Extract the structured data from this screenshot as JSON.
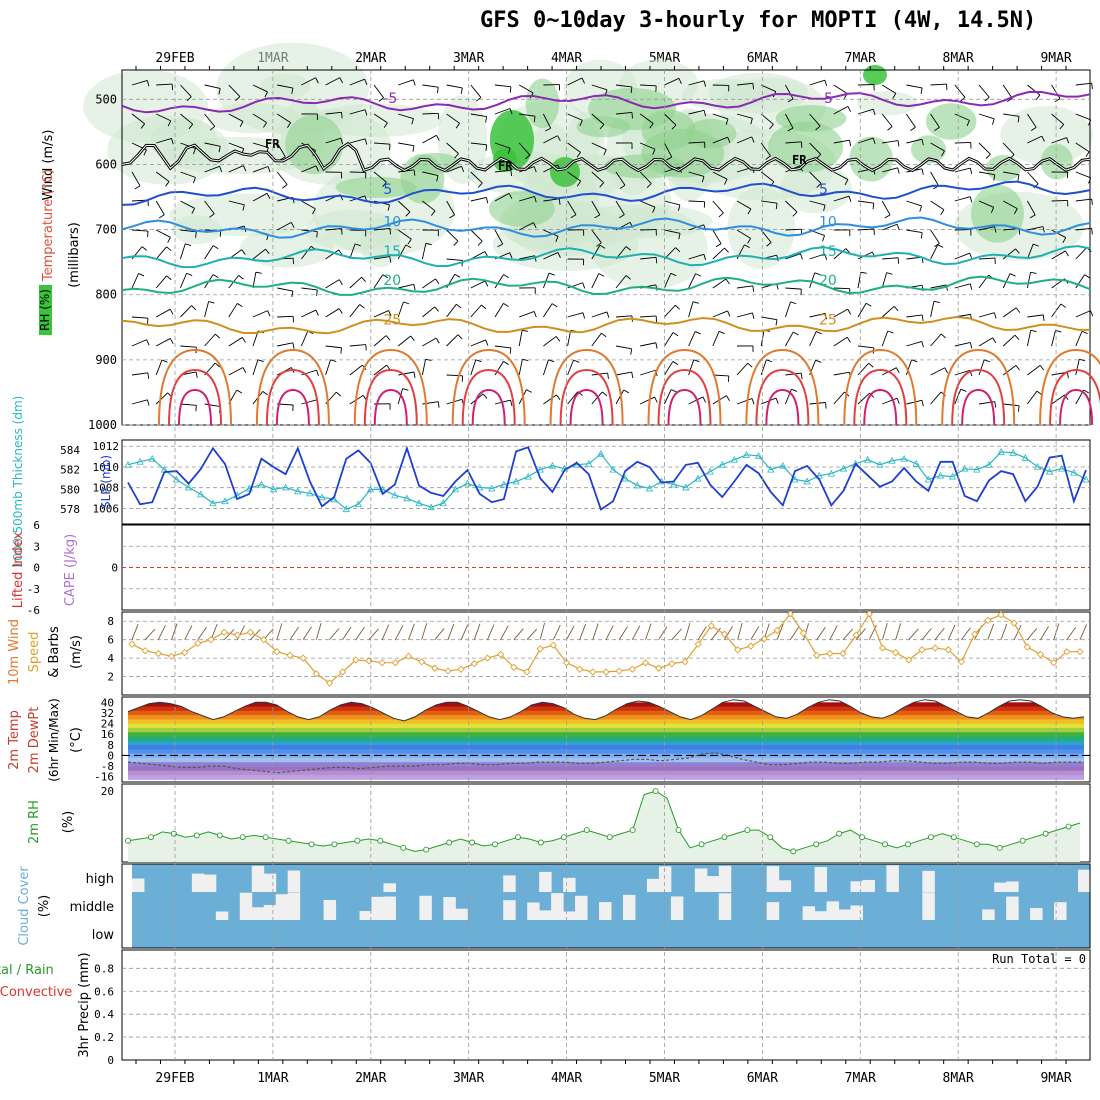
{
  "title": "GFS 0~10day 3-hourly for MOPTI (4W, 14.5N)",
  "run_total_label": "Run Total = 0",
  "dates": [
    "29FEB",
    "1MAR",
    "2MAR",
    "3MAR",
    "4MAR",
    "5MAR",
    "6MAR",
    "7MAR",
    "8MAR",
    "9MAR"
  ],
  "colors": {
    "slp": "#1f3fcf",
    "thickness": "#2ab7c2",
    "wind": "#e0a030",
    "rh2m": "#2a9a2a",
    "cloud": "#6baed6",
    "cloud_gap": "#f0f0f0",
    "lifted_zero": "#e03030",
    "barb": "#000000"
  },
  "chart_data": [
    {
      "type": "heatmap",
      "name": "upper",
      "ylabel_parts": [
        {
          "text": "Wind (m/s)",
          "color": "#000000"
        },
        {
          "text": "Temperature (°C)",
          "color": "#e0503a"
        },
        {
          "text": "(millibars)",
          "color": "#000000"
        },
        {
          "text": "RH (%)",
          "color": "#2a9a2a"
        }
      ],
      "yticks": [
        500,
        600,
        700,
        800,
        900,
        1000
      ],
      "temp_isotherms": [
        {
          "label": "-5",
          "p": 510,
          "color": "#8a2ab2"
        },
        {
          "label": "5",
          "p": 650,
          "color": "#1f4fcf"
        },
        {
          "label": "10",
          "p": 700,
          "color": "#2f8fdf"
        },
        {
          "label": "15",
          "p": 745,
          "color": "#20b0b0"
        },
        {
          "label": "20",
          "p": 790,
          "color": "#20b080"
        },
        {
          "label": "25",
          "p": 850,
          "color": "#d09020"
        }
      ],
      "freezing_label": "FR"
    },
    {
      "type": "line",
      "name": "slp_thickness",
      "ylabel_left": "1000-500mb Thickness (dm)",
      "ylabel_right": "SLP (mb)",
      "yticks_left": [
        578,
        580,
        582,
        584
      ],
      "yticks_right": [
        1006,
        1008,
        1010,
        1012
      ],
      "series": [
        {
          "name": "SLP",
          "values": [
            1008.5,
            1006.4,
            1006.6,
            1009.5,
            1009.6,
            1008.4,
            1009.8,
            1011.8,
            1010.3,
            1006.9,
            1007.4,
            1010.8,
            1010.0,
            1009.3,
            1011.8,
            1008.6,
            1006.2,
            1007.1,
            1010.8,
            1011.6,
            1010.4,
            1007.4,
            1008.3,
            1011.8,
            1008.2,
            1007.5,
            1007.2,
            1008.6,
            1009.7,
            1007.4,
            1006.6,
            1006.9,
            1011.5,
            1011.9,
            1008.9,
            1007.6,
            1009.7,
            1010.4,
            1009.3,
            1005.9,
            1006.7,
            1009.6,
            1010.5,
            1010.0,
            1008.5,
            1008.6,
            1010.2,
            1010.4,
            1008.3,
            1007.1,
            1008.6,
            1010.2,
            1009.4,
            1007.6,
            1006.3,
            1009.6,
            1010.1,
            1008.8,
            1006.3,
            1007.7,
            1010.3,
            1009.2,
            1008.1,
            1008.6,
            1009.9,
            1008.6,
            1007.7,
            1010.5,
            1010.5,
            1007.2,
            1006.7,
            1008.7,
            1009.6,
            1009.3,
            1006.7,
            1008.1,
            1010.9,
            1011.1,
            1006.7,
            1009.7
          ]
        },
        {
          "name": "Thickness",
          "values": [
            582.5,
            582.8,
            583.1,
            582.0,
            581.0,
            580.2,
            579.5,
            578.6,
            578.8,
            579.4,
            580.1,
            580.5,
            580.0,
            580.2,
            579.8,
            579.6,
            579.2,
            579.0,
            578.0,
            578.5,
            580.0,
            580.0,
            579.4,
            579.1,
            578.6,
            578.2,
            578.6,
            580.0,
            580.6,
            580.2,
            580.1,
            580.5,
            580.8,
            581.3,
            582.0,
            582.4,
            582.1,
            582.5,
            582.6,
            583.6,
            582.0,
            581.1,
            580.4,
            580.1,
            580.8,
            580.5,
            580.2,
            581.1,
            581.8,
            582.5,
            583.0,
            583.5,
            583.4,
            582.0,
            582.4,
            581.0,
            580.8,
            581.4,
            581.6,
            582.1,
            582.6,
            583.0,
            582.5,
            582.9,
            583.1,
            582.6,
            581.0,
            581.4,
            581.3,
            582.1,
            582.0,
            582.5,
            583.8,
            583.7,
            583.2,
            582.3,
            581.8,
            582.1,
            581.7,
            581.0
          ]
        }
      ]
    },
    {
      "type": "line",
      "name": "stability",
      "ylabel_left": "Lifted Index",
      "ylabel_right": "CAPE (J/kg)",
      "yticks_left": [
        -6,
        -3,
        0,
        3,
        6
      ],
      "ylim": [
        -6,
        6
      ]
    },
    {
      "type": "line",
      "name": "wind10m",
      "ylabel": "10m Wind Speed & Barbs (m/s)",
      "yticks": [
        2,
        4,
        6,
        8
      ],
      "ylim": [
        0,
        9
      ],
      "series": [
        {
          "name": "Speed",
          "values": [
            5.5,
            4.8,
            4.5,
            4.2,
            4.6,
            5.6,
            6.0,
            6.8,
            6.5,
            6.8,
            6.0,
            4.7,
            4.3,
            4.0,
            2.3,
            1.3,
            2.5,
            3.8,
            3.7,
            3.5,
            3.5,
            4.2,
            3.6,
            2.9,
            2.6,
            2.8,
            3.4,
            4.0,
            4.4,
            3.0,
            2.5,
            5.0,
            5.4,
            3.5,
            2.8,
            2.5,
            2.5,
            2.6,
            2.8,
            3.5,
            2.9,
            3.4,
            3.6,
            5.5,
            7.5,
            6.6,
            4.9,
            5.3,
            6.1,
            7.0,
            8.8,
            6.7,
            4.3,
            4.5,
            4.5,
            6.5,
            8.8,
            5.1,
            4.6,
            3.8,
            4.9,
            5.1,
            4.9,
            3.6,
            6.6,
            8.1,
            8.7,
            7.8,
            5.2,
            4.4,
            3.5,
            4.7,
            4.7
          ]
        }
      ]
    },
    {
      "type": "area",
      "name": "temp2m",
      "ylabel": "2m Temp 2m DewPt (6hr Min/Max) (°C)",
      "yticks": [
        40,
        32,
        24,
        16,
        8,
        0,
        -8,
        -16
      ],
      "ylim": [
        -20,
        44
      ],
      "series": [
        {
          "name": "2m Temp",
          "values": [
            33,
            36,
            39,
            40,
            39,
            37,
            33,
            30,
            27,
            29,
            33,
            37,
            40,
            40,
            38,
            33,
            29,
            27,
            29,
            34,
            38,
            40,
            39,
            36,
            32,
            28,
            26,
            29,
            34,
            38,
            40,
            40,
            37,
            33,
            29,
            27,
            29,
            33,
            38,
            40,
            39,
            36,
            31,
            28,
            27,
            30,
            35,
            39,
            41,
            40,
            37,
            33,
            29,
            27,
            30,
            35,
            40,
            42,
            41,
            37,
            33,
            29,
            28,
            31,
            36,
            40,
            42,
            41,
            37,
            32,
            29,
            28,
            31,
            36,
            40,
            42,
            41,
            37,
            33,
            29,
            28,
            32,
            37,
            41,
            42,
            41,
            37,
            32,
            29,
            28,
            29
          ]
        },
        {
          "name": "2m DewPt",
          "values": [
            -5,
            -6,
            -7,
            -8,
            -9,
            -9,
            -8,
            -8,
            -10,
            -11,
            -12,
            -13,
            -12,
            -11,
            -10,
            -9,
            -9,
            -10,
            -9,
            -8,
            -8,
            -8,
            -7,
            -7,
            -6,
            -6,
            -7,
            -7,
            -6,
            -6,
            -5,
            -5,
            -5,
            -6,
            -6,
            -5,
            -4,
            -3,
            -3,
            -4,
            -3,
            -2,
            1,
            2,
            0,
            -3,
            -5,
            -7,
            -7,
            -6,
            -5,
            -5,
            -6,
            -6,
            -5,
            -5,
            -4,
            -4,
            -5,
            -6,
            -6,
            -5,
            -5,
            -6,
            -6,
            -5,
            -5,
            -6,
            -5,
            -5,
            -5
          ]
        }
      ]
    },
    {
      "type": "area",
      "name": "rh2m",
      "ylabel": "2m RH (%)",
      "yticks": [
        20
      ],
      "ylim": [
        0,
        22
      ],
      "series": [
        {
          "name": "2m RH",
          "values": [
            6,
            6.5,
            7,
            8.5,
            8,
            7,
            7.5,
            8.5,
            7.5,
            6.5,
            7,
            7.5,
            7,
            6.5,
            6,
            5.5,
            5,
            4.5,
            5,
            5.5,
            6,
            6.5,
            6,
            5,
            4,
            3,
            3.5,
            4.5,
            5.5,
            6.5,
            5.5,
            4.5,
            5,
            6,
            7,
            6.5,
            5.5,
            6,
            7,
            8,
            9,
            8,
            7,
            8,
            9,
            19,
            20,
            18,
            9,
            4,
            5,
            6,
            7,
            8,
            9,
            9,
            7,
            4,
            3,
            4,
            5,
            6,
            8,
            9,
            7,
            6,
            5,
            4,
            5,
            6,
            7,
            8,
            7,
            6,
            5,
            5,
            4,
            5,
            6,
            7,
            8,
            9,
            10,
            11
          ]
        }
      ]
    },
    {
      "type": "bar",
      "name": "cloud",
      "ylabel": "Cloud Cover (%)",
      "categories": [
        "high",
        "middle",
        "low"
      ]
    },
    {
      "type": "bar",
      "name": "precip",
      "ylabel_parts": [
        {
          "text": "Total / Rain",
          "color": "#2a9a2a"
        },
        {
          "text": "Convective",
          "color": "#e03030"
        },
        {
          "text": "3hr Precip (mm)",
          "color": "#000000"
        }
      ],
      "yticks": [
        0,
        0.2,
        0.4,
        0.6,
        0.8
      ],
      "ylim": [
        0,
        1
      ],
      "values": []
    }
  ]
}
